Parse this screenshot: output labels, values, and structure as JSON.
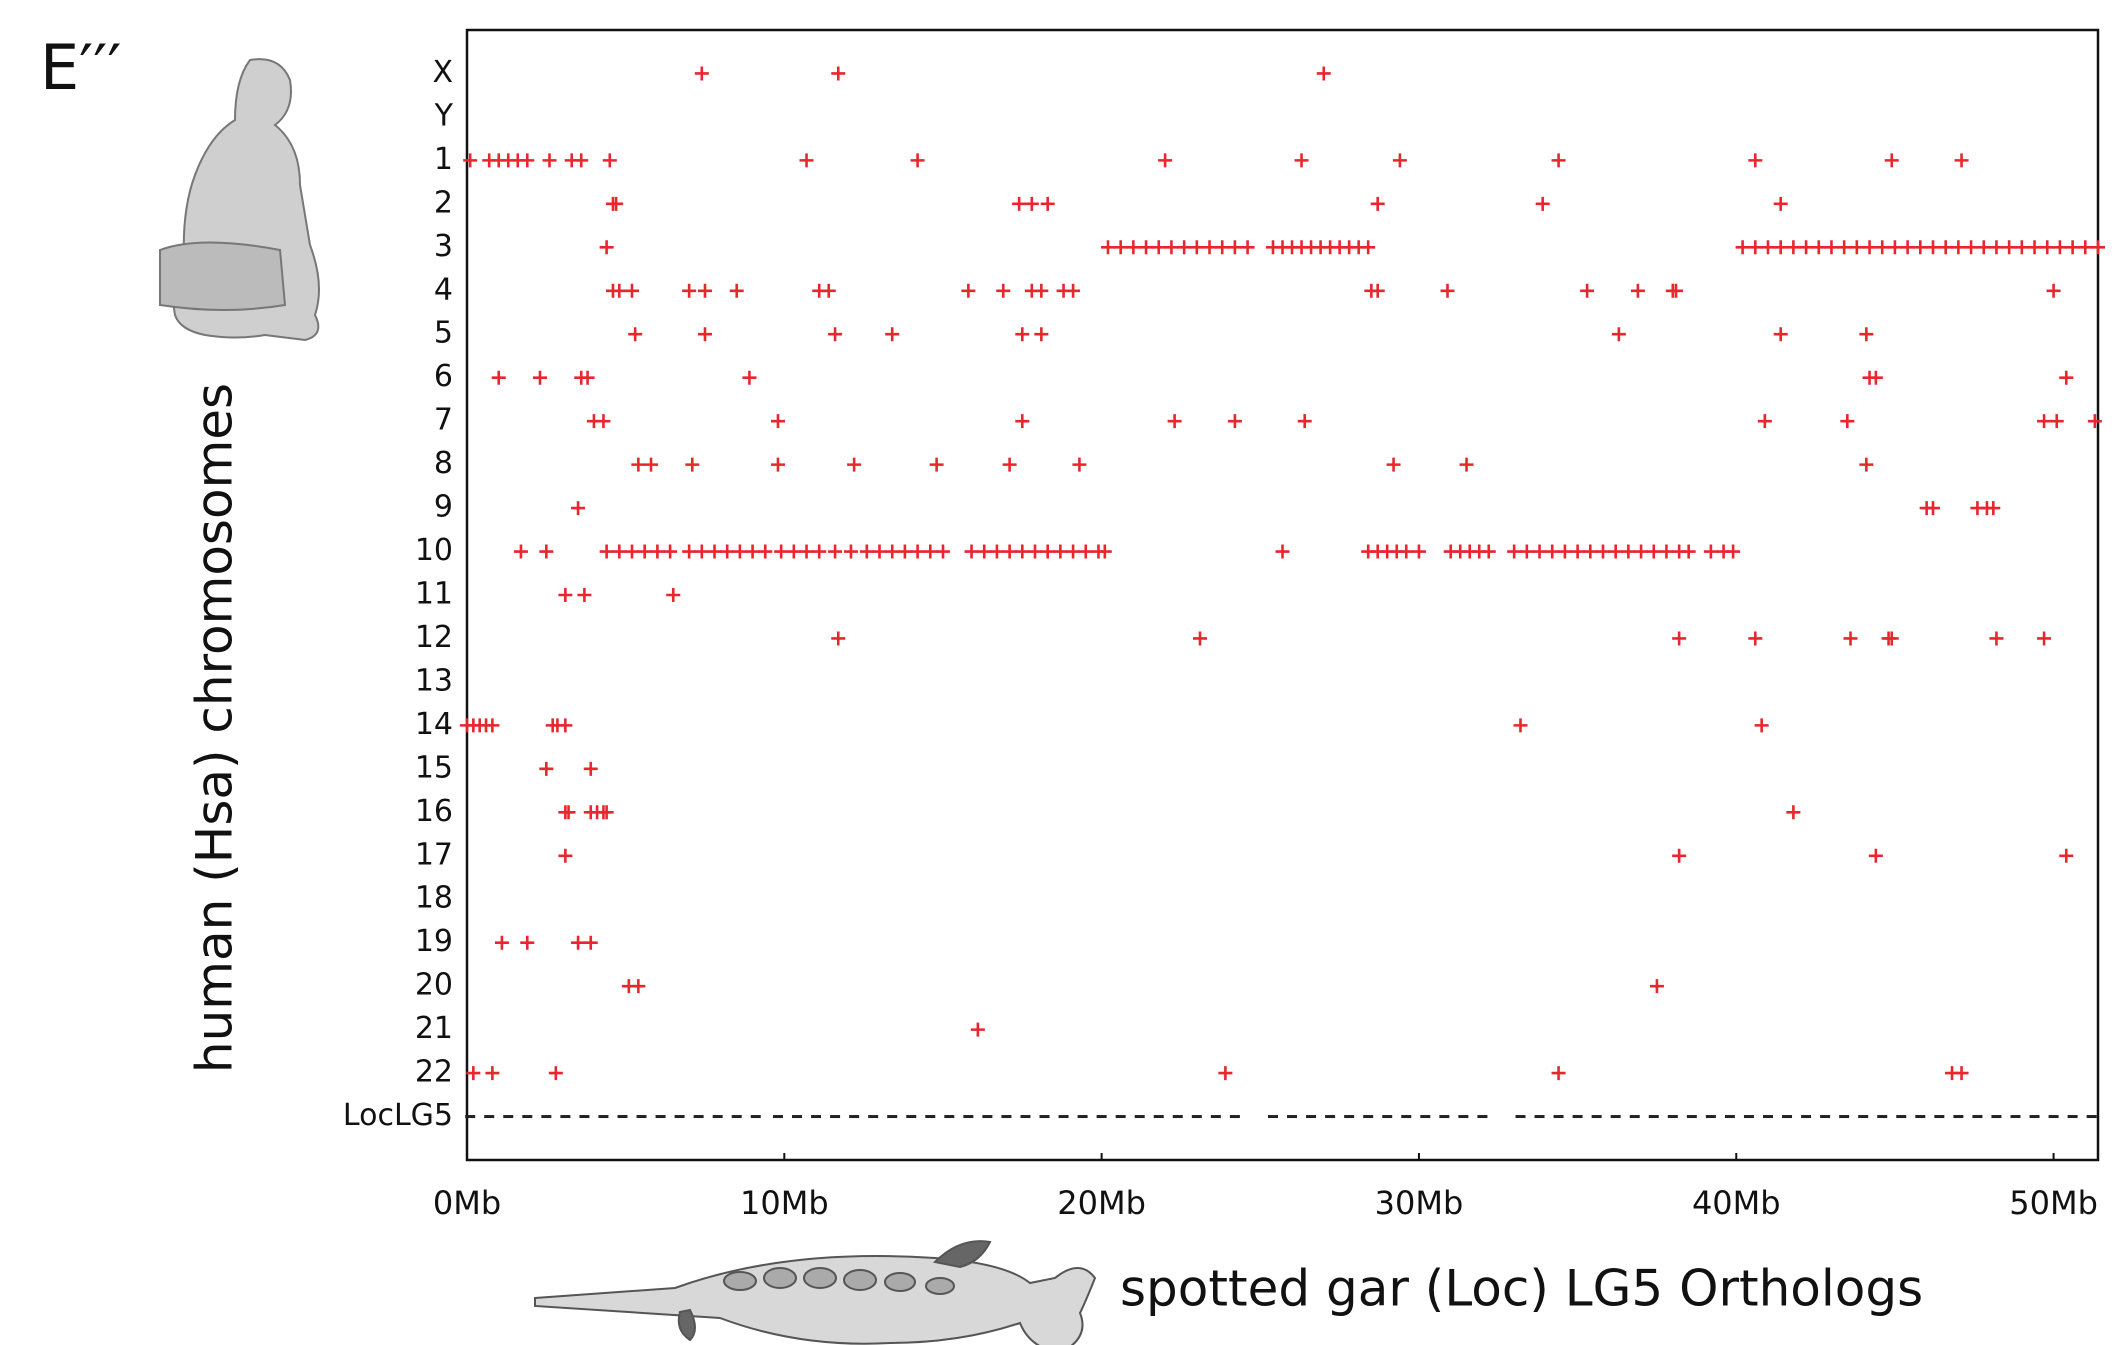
{
  "chart_data": {
    "type": "scatter",
    "title": "E′′′",
    "y_label": "human (Hsa) chromosomes",
    "x_label": "spotted gar (Loc) LG5 Orthologs",
    "color": "#e8262d",
    "xlim": [
      0,
      51.4
    ],
    "xticks": [
      {
        "value": 0,
        "label": "0Mb"
      },
      {
        "value": 10,
        "label": "10Mb"
      },
      {
        "value": 20,
        "label": "20Mb"
      },
      {
        "value": 30,
        "label": "30Mb"
      },
      {
        "value": 40,
        "label": "40Mb"
      },
      {
        "value": 50,
        "label": "50Mb"
      }
    ],
    "rows": [
      {
        "label": "X",
        "x": [
          7.4,
          11.7,
          27.0
        ]
      },
      {
        "label": "Y",
        "x": []
      },
      {
        "label": "1",
        "x": [
          0.1,
          0.7,
          1.0,
          1.3,
          1.6,
          1.9,
          2.6,
          3.3,
          3.6,
          4.5,
          10.7,
          14.2,
          22.0,
          26.3,
          29.4,
          34.4,
          40.6,
          44.9,
          47.1
        ]
      },
      {
        "label": "2",
        "x": [
          4.6,
          4.7,
          17.4,
          17.8,
          18.3,
          28.7,
          33.9,
          41.4
        ]
      },
      {
        "label": "3",
        "x": [
          4.4,
          20.2,
          20.6,
          21.0,
          21.4,
          21.8,
          22.2,
          22.6,
          23.0,
          23.4,
          23.8,
          24.2,
          24.6,
          25.4,
          25.7,
          26.0,
          26.3,
          26.6,
          26.9,
          27.2,
          27.5,
          27.8,
          28.1,
          28.4,
          40.2,
          40.6,
          41.0,
          41.4,
          41.8,
          42.2,
          42.6,
          43.0,
          43.4,
          43.8,
          44.2,
          44.6,
          45.0,
          45.4,
          45.8,
          46.2,
          46.6,
          47.0,
          47.4,
          47.8,
          48.2,
          48.6,
          49.0,
          49.4,
          49.8,
          50.2,
          50.6,
          51.0,
          51.4
        ]
      },
      {
        "label": "4",
        "x": [
          4.6,
          4.8,
          5.2,
          7.0,
          7.5,
          8.5,
          11.1,
          11.4,
          15.8,
          16.9,
          17.8,
          18.1,
          18.8,
          19.1,
          28.5,
          28.7,
          30.9,
          35.3,
          36.9,
          38.0,
          38.1,
          50.0
        ]
      },
      {
        "label": "5",
        "x": [
          5.3,
          7.5,
          11.6,
          13.4,
          17.5,
          18.1,
          36.3,
          41.4,
          44.1
        ]
      },
      {
        "label": "6",
        "x": [
          1.0,
          2.3,
          3.6,
          3.8,
          8.9,
          44.2,
          44.4,
          50.4
        ]
      },
      {
        "label": "7",
        "x": [
          4.0,
          4.3,
          9.8,
          17.5,
          22.3,
          24.2,
          26.4,
          40.9,
          43.5,
          49.7,
          50.1,
          51.3
        ]
      },
      {
        "label": "8",
        "x": [
          5.4,
          5.8,
          7.1,
          9.8,
          12.2,
          14.8,
          17.1,
          19.3,
          29.2,
          31.5,
          44.1
        ]
      },
      {
        "label": "9",
        "x": [
          3.5,
          46.0,
          46.2,
          47.6,
          47.9,
          48.1
        ]
      },
      {
        "label": "10",
        "x": [
          1.7,
          2.5,
          4.4,
          4.8,
          5.2,
          5.6,
          6.0,
          6.4,
          7.0,
          7.4,
          7.8,
          8.2,
          8.6,
          9.0,
          9.4,
          9.9,
          10.3,
          10.7,
          11.1,
          11.6,
          12.1,
          12.6,
          13.0,
          13.4,
          13.8,
          14.2,
          14.6,
          15.0,
          15.9,
          16.3,
          16.7,
          17.1,
          17.5,
          17.9,
          18.3,
          18.7,
          19.1,
          19.5,
          19.9,
          20.1,
          25.7,
          28.4,
          28.7,
          29.0,
          29.3,
          29.6,
          30.0,
          31.0,
          31.3,
          31.6,
          31.9,
          32.2,
          33.0,
          33.4,
          33.8,
          34.2,
          34.6,
          35.0,
          35.4,
          35.8,
          36.2,
          36.6,
          37.0,
          37.4,
          37.8,
          38.2,
          38.5,
          39.2,
          39.6,
          39.9
        ]
      },
      {
        "label": "11",
        "x": [
          3.1,
          3.7,
          6.5
        ]
      },
      {
        "label": "12",
        "x": [
          11.7,
          23.1,
          38.2,
          40.6,
          43.6,
          44.8,
          44.9,
          48.2,
          49.7
        ]
      },
      {
        "label": "13",
        "x": []
      },
      {
        "label": "14",
        "x": [
          0.0,
          0.2,
          0.4,
          0.6,
          0.8,
          2.7,
          2.85,
          3.1,
          33.2,
          40.8
        ]
      },
      {
        "label": "15",
        "x": [
          2.5,
          3.9
        ]
      },
      {
        "label": "16",
        "x": [
          3.1,
          3.2,
          3.9,
          4.1,
          4.3,
          4.4,
          41.8
        ]
      },
      {
        "label": "17",
        "x": [
          3.1,
          38.2,
          44.4,
          50.4
        ]
      },
      {
        "label": "18",
        "x": []
      },
      {
        "label": "19",
        "x": [
          1.1,
          1.9,
          3.5,
          3.9
        ]
      },
      {
        "label": "20",
        "x": [
          5.1,
          5.4,
          37.5
        ]
      },
      {
        "label": "21",
        "x": [
          16.1
        ]
      },
      {
        "label": "22",
        "x": [
          0.2,
          0.8,
          2.8,
          23.9,
          34.4,
          46.8,
          47.1
        ]
      },
      {
        "label": "LocLG5",
        "color": "#222222",
        "x": [
          0.1,
          0.7,
          1.3,
          1.9,
          2.5,
          3.1,
          3.7,
          4.3,
          4.9,
          5.5,
          6.1,
          6.7,
          7.3,
          7.9,
          8.5,
          9.1,
          9.8,
          10.4,
          11.0,
          11.6,
          12.2,
          12.8,
          13.4,
          14.0,
          14.6,
          15.2,
          15.8,
          16.4,
          17.0,
          17.6,
          18.2,
          18.8,
          19.4,
          20.0,
          20.6,
          21.2,
          21.8,
          22.4,
          23.0,
          23.6,
          24.2,
          25.4,
          26.0,
          26.6,
          27.2,
          27.8,
          28.4,
          29.0,
          29.6,
          30.2,
          30.8,
          31.4,
          32.0,
          33.2,
          33.8,
          34.4,
          35.0,
          35.6,
          36.2,
          36.8,
          37.4,
          38.0,
          38.6,
          39.2,
          39.8,
          40.4,
          41.0,
          41.6,
          42.2,
          42.8,
          43.4,
          44.0,
          44.6,
          45.2,
          45.8,
          46.4,
          47.0,
          47.6,
          48.2,
          48.8,
          49.4,
          50.0,
          50.6,
          51.2
        ]
      }
    ]
  }
}
